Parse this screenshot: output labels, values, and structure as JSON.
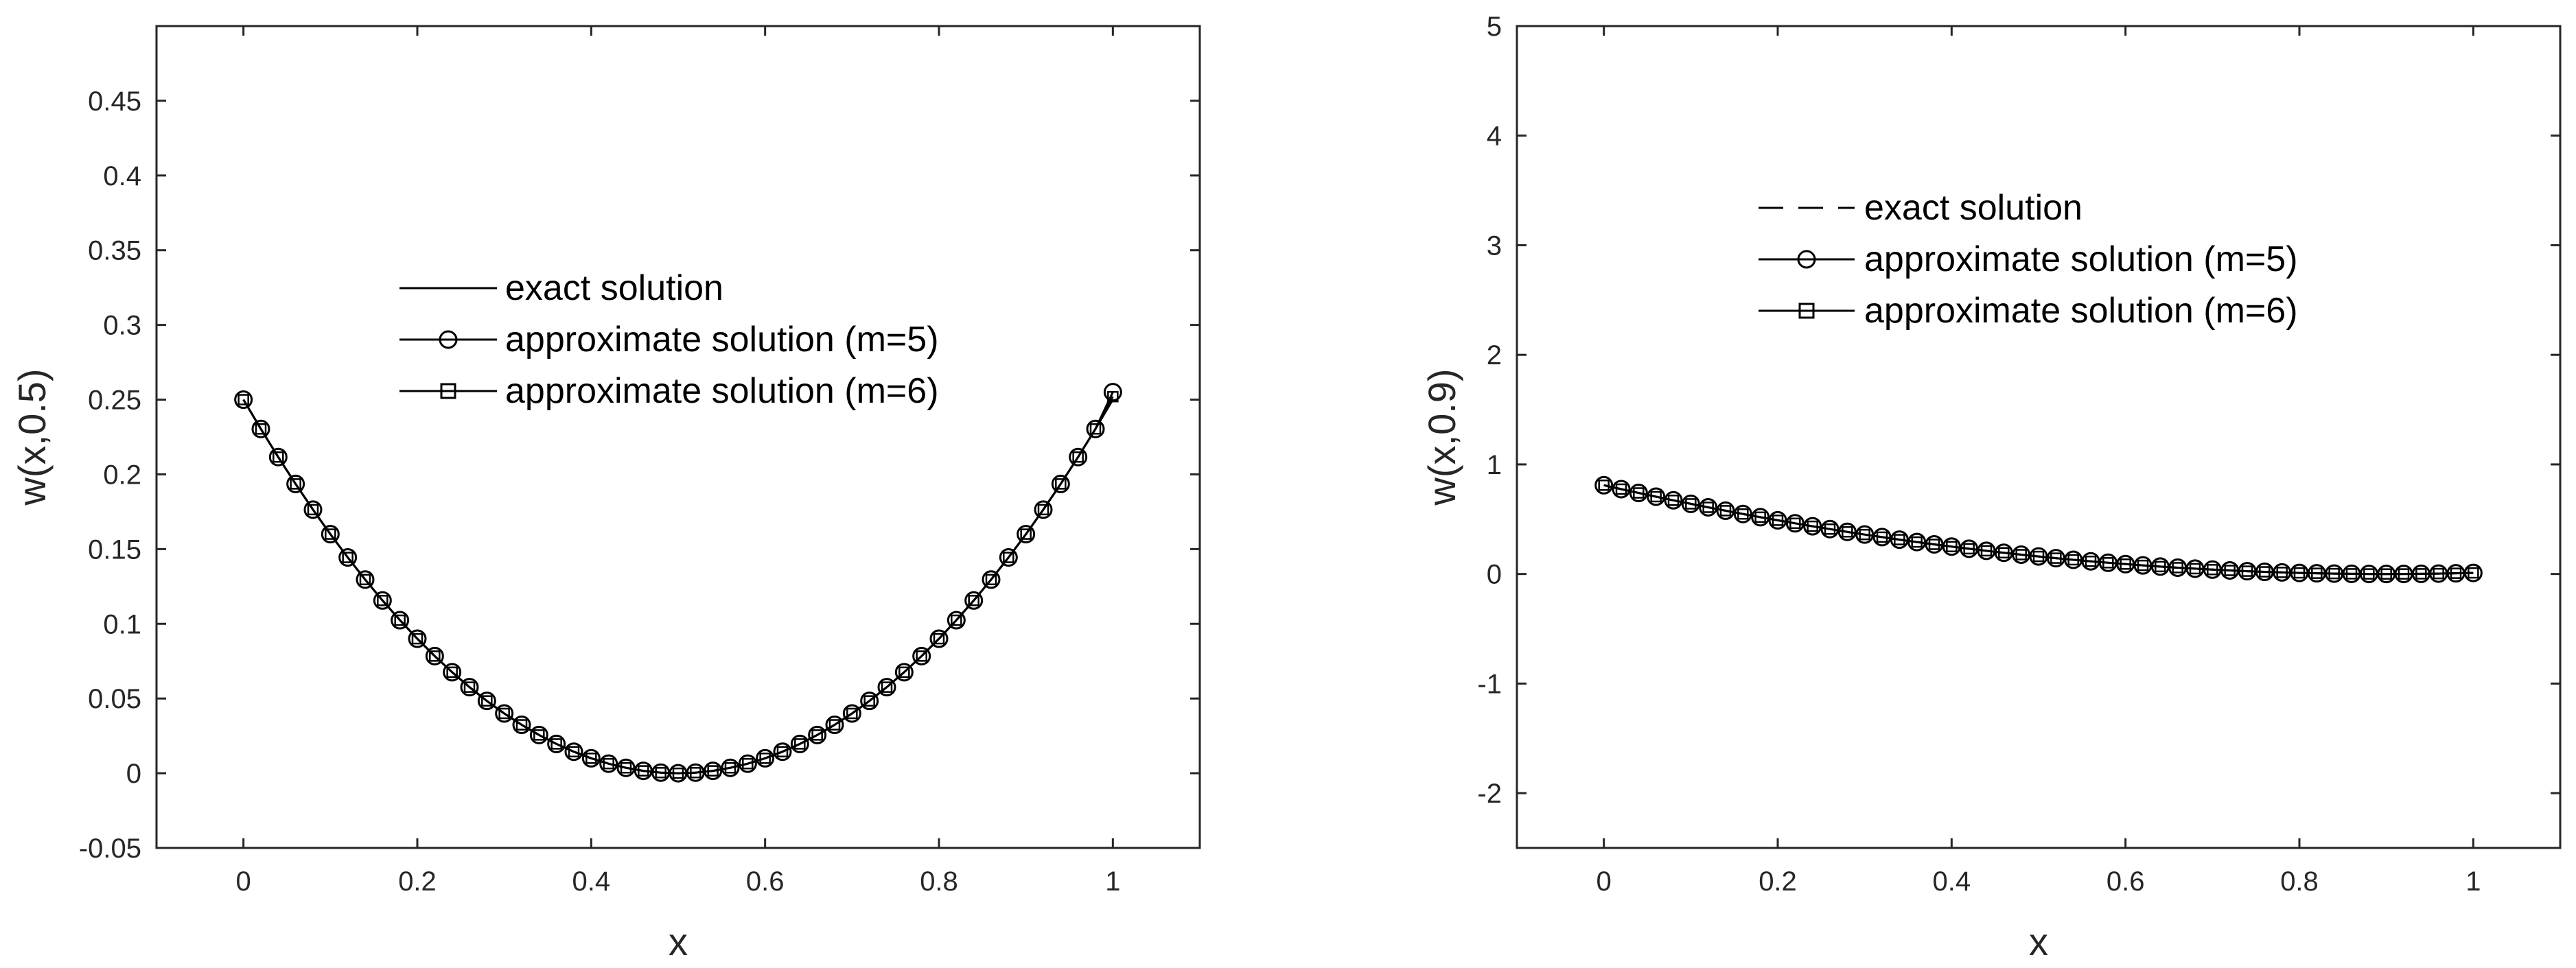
{
  "chart_data": [
    {
      "type": "line",
      "title": "",
      "xlabel": "x",
      "ylabel": "w(x,0.5)",
      "xlim": [
        -0.1,
        1.1
      ],
      "ylim": [
        -0.05,
        0.5
      ],
      "xticks": [
        0,
        0.2,
        0.4,
        0.6,
        0.8,
        1
      ],
      "yticks": [
        -0.05,
        0,
        0.05,
        0.1,
        0.15,
        0.2,
        0.25,
        0.3,
        0.35,
        0.4,
        0.45
      ],
      "xtick_labels": [
        "0",
        "0.2",
        "0.4",
        "0.6",
        "0.8",
        "1"
      ],
      "ytick_labels": [
        "-0.05",
        "0",
        "0.05",
        "0.1",
        "0.15",
        "0.2",
        "0.25",
        "0.3",
        "0.35",
        "0.4",
        "0.45"
      ],
      "legend_position": "center",
      "x": [
        0,
        0.02,
        0.04,
        0.06,
        0.08,
        0.1,
        0.12,
        0.14,
        0.16,
        0.18,
        0.2,
        0.22,
        0.24,
        0.26,
        0.28,
        0.3,
        0.32,
        0.34,
        0.36,
        0.38,
        0.4,
        0.42,
        0.44,
        0.46,
        0.48,
        0.5,
        0.52,
        0.54,
        0.56,
        0.58,
        0.6,
        0.62,
        0.64,
        0.66,
        0.68,
        0.7,
        0.72,
        0.74,
        0.76,
        0.78,
        0.8,
        0.82,
        0.84,
        0.86,
        0.88,
        0.9,
        0.92,
        0.94,
        0.96,
        0.98,
        1
      ],
      "series": [
        {
          "name": "exact solution",
          "line": "solid",
          "marker": "none",
          "values": [
            0.25,
            0.2304,
            0.2116,
            0.1936,
            0.1764,
            0.16,
            0.1444,
            0.1296,
            0.1156,
            0.1024,
            0.09,
            0.0784,
            0.0676,
            0.0576,
            0.0484,
            0.04,
            0.0324,
            0.0256,
            0.0196,
            0.0144,
            0.01,
            0.0064,
            0.0036,
            0.0016,
            0.0004,
            0,
            0.0004,
            0.0016,
            0.0036,
            0.0064,
            0.01,
            0.0144,
            0.0196,
            0.0256,
            0.0324,
            0.04,
            0.0484,
            0.0576,
            0.0676,
            0.0784,
            0.09,
            0.1024,
            0.1156,
            0.1296,
            0.1444,
            0.16,
            0.1764,
            0.1936,
            0.2116,
            0.2304,
            0.25
          ]
        },
        {
          "name": "approximate solution (m=5)",
          "line": "solid",
          "marker": "circle",
          "values": [
            0.25,
            0.2304,
            0.2116,
            0.1936,
            0.1764,
            0.16,
            0.1444,
            0.1296,
            0.1156,
            0.1024,
            0.09,
            0.0784,
            0.0676,
            0.0576,
            0.0484,
            0.04,
            0.0324,
            0.0256,
            0.0196,
            0.0144,
            0.01,
            0.0064,
            0.0036,
            0.0016,
            0.0004,
            0,
            0.0004,
            0.0016,
            0.0036,
            0.0064,
            0.01,
            0.0144,
            0.0196,
            0.0256,
            0.0324,
            0.04,
            0.0484,
            0.0576,
            0.0676,
            0.0784,
            0.09,
            0.1024,
            0.1156,
            0.1296,
            0.1444,
            0.16,
            0.1764,
            0.1936,
            0.2116,
            0.2304,
            0.255
          ]
        },
        {
          "name": "approximate solution (m=6)",
          "line": "solid",
          "marker": "square",
          "values": [
            0.25,
            0.2304,
            0.2116,
            0.1936,
            0.1764,
            0.16,
            0.1444,
            0.1296,
            0.1156,
            0.1024,
            0.09,
            0.0784,
            0.0676,
            0.0576,
            0.0484,
            0.04,
            0.0324,
            0.0256,
            0.0196,
            0.0144,
            0.01,
            0.0064,
            0.0036,
            0.0016,
            0.0004,
            0,
            0.0004,
            0.0016,
            0.0036,
            0.0064,
            0.01,
            0.0144,
            0.0196,
            0.0256,
            0.0324,
            0.04,
            0.0484,
            0.0576,
            0.0676,
            0.0784,
            0.09,
            0.1024,
            0.1156,
            0.1296,
            0.1444,
            0.16,
            0.1764,
            0.1936,
            0.2116,
            0.2304,
            0.252
          ]
        }
      ]
    },
    {
      "type": "line",
      "title": "",
      "xlabel": "x",
      "ylabel": "w(x,0.9)",
      "xlim": [
        -0.1,
        1.1
      ],
      "ylim": [
        -2.5,
        5
      ],
      "xticks": [
        0,
        0.2,
        0.4,
        0.6,
        0.8,
        1
      ],
      "yticks": [
        -2,
        -1,
        0,
        1,
        2,
        3,
        4,
        5
      ],
      "xtick_labels": [
        "0",
        "0.2",
        "0.4",
        "0.6",
        "0.8",
        "1"
      ],
      "ytick_labels": [
        "-2",
        "-1",
        "0",
        "1",
        "2",
        "3",
        "4",
        "5"
      ],
      "legend_position": "top-center",
      "x": [
        0,
        0.02,
        0.04,
        0.06,
        0.08,
        0.1,
        0.12,
        0.14,
        0.16,
        0.18,
        0.2,
        0.22,
        0.24,
        0.26,
        0.28,
        0.3,
        0.32,
        0.34,
        0.36,
        0.38,
        0.4,
        0.42,
        0.44,
        0.46,
        0.48,
        0.5,
        0.52,
        0.54,
        0.56,
        0.58,
        0.6,
        0.62,
        0.64,
        0.66,
        0.68,
        0.7,
        0.72,
        0.74,
        0.76,
        0.78,
        0.8,
        0.82,
        0.84,
        0.86,
        0.88,
        0.9,
        0.92,
        0.94,
        0.96,
        0.98,
        1
      ],
      "series": [
        {
          "name": "exact solution",
          "line": "dashed",
          "marker": "none",
          "values": [
            0.81,
            0.7744,
            0.7396,
            0.7056,
            0.6724,
            0.64,
            0.6084,
            0.5776,
            0.5476,
            0.5184,
            0.49,
            0.4624,
            0.4356,
            0.4096,
            0.3844,
            0.36,
            0.3364,
            0.3136,
            0.2916,
            0.2704,
            0.25,
            0.2304,
            0.2116,
            0.1936,
            0.1764,
            0.16,
            0.1444,
            0.1296,
            0.1156,
            0.1024,
            0.09,
            0.0784,
            0.0676,
            0.0576,
            0.0484,
            0.04,
            0.0324,
            0.0256,
            0.0196,
            0.0144,
            0.01,
            0.0064,
            0.0036,
            0.0016,
            0.0004,
            0,
            0.0004,
            0.0016,
            0.0036,
            0.0064,
            0.01
          ]
        },
        {
          "name": "approximate solution (m=5)",
          "line": "solid",
          "marker": "circle",
          "values": [
            0.81,
            0.7744,
            0.7396,
            0.7056,
            0.6724,
            0.64,
            0.6084,
            0.5776,
            0.5476,
            0.5184,
            0.49,
            0.4624,
            0.4356,
            0.4096,
            0.3844,
            0.36,
            0.3364,
            0.3136,
            0.2916,
            0.2704,
            0.25,
            0.2304,
            0.2116,
            0.1936,
            0.1764,
            0.16,
            0.1444,
            0.1296,
            0.1156,
            0.1024,
            0.09,
            0.0784,
            0.0676,
            0.0576,
            0.0484,
            0.04,
            0.0324,
            0.0256,
            0.0196,
            0.0144,
            0.01,
            0.0064,
            0.0036,
            0.0016,
            0.0004,
            0,
            0.0004,
            0.0016,
            0.0036,
            0.0064,
            0.01
          ]
        },
        {
          "name": "approximate solution (m=6)",
          "line": "solid",
          "marker": "square",
          "values": [
            0.81,
            0.7744,
            0.7396,
            0.7056,
            0.6724,
            0.64,
            0.6084,
            0.5776,
            0.5476,
            0.5184,
            0.49,
            0.4624,
            0.4356,
            0.4096,
            0.3844,
            0.36,
            0.3364,
            0.3136,
            0.2916,
            0.2704,
            0.25,
            0.2304,
            0.2116,
            0.1936,
            0.1764,
            0.16,
            0.1444,
            0.1296,
            0.1156,
            0.1024,
            0.09,
            0.0784,
            0.0676,
            0.0576,
            0.0484,
            0.04,
            0.0324,
            0.0256,
            0.0196,
            0.0144,
            0.01,
            0.0064,
            0.0036,
            0.0016,
            0.0004,
            0,
            0.0004,
            0.0016,
            0.0036,
            0.0064,
            0.01
          ]
        }
      ]
    }
  ]
}
